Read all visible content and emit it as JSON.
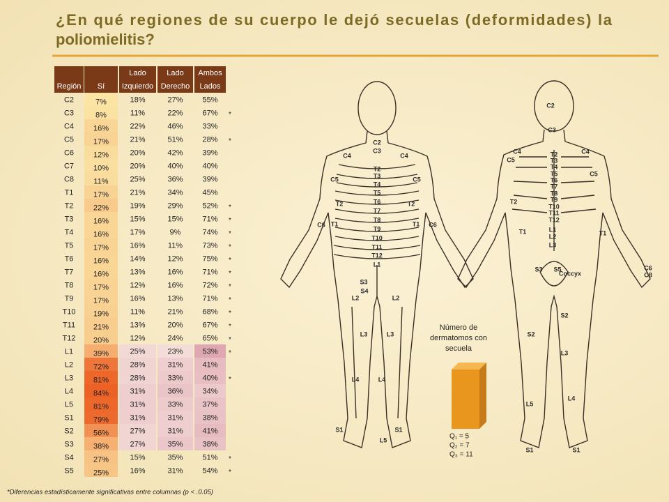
{
  "title": "¿En qué regiones de su cuerpo le dejó secuelas (deformidades) la poliomielitis?",
  "table": {
    "headers": [
      "Región",
      "Sí",
      "Lado Izquierdo",
      "Lado Derecho",
      "Ambos Lados"
    ],
    "rows": [
      {
        "region": "C2",
        "si": "7%",
        "izq": "18%",
        "der": "27%",
        "ambos": "55%"
      },
      {
        "region": "C3",
        "si": "8%",
        "izq": "11%",
        "der": "22%",
        "ambos": "67%",
        "star": "*"
      },
      {
        "region": "C4",
        "si": "16%",
        "izq": "22%",
        "der": "46%",
        "ambos": "33%"
      },
      {
        "region": "C5",
        "si": "17%",
        "izq": "21%",
        "der": "51%",
        "ambos": "28%",
        "star": "*"
      },
      {
        "region": "C6",
        "si": "12%",
        "izq": "20%",
        "der": "42%",
        "ambos": "39%"
      },
      {
        "region": "C7",
        "si": "10%",
        "izq": "20%",
        "der": "40%",
        "ambos": "40%"
      },
      {
        "region": "C8",
        "si": "11%",
        "izq": "25%",
        "der": "36%",
        "ambos": "39%"
      },
      {
        "region": "T1",
        "si": "17%",
        "izq": "21%",
        "der": "34%",
        "ambos": "45%"
      },
      {
        "region": "T2",
        "si": "22%",
        "izq": "19%",
        "der": "29%",
        "ambos": "52%",
        "star": "*"
      },
      {
        "region": "T3",
        "si": "16%",
        "izq": "15%",
        "der": "15%",
        "ambos": "71%",
        "star": "*"
      },
      {
        "region": "T4",
        "si": "16%",
        "izq": "17%",
        "der": "9%",
        "ambos": "74%",
        "star": "*"
      },
      {
        "region": "T5",
        "si": "17%",
        "izq": "16%",
        "der": "11%",
        "ambos": "73%",
        "star": "*"
      },
      {
        "region": "T6",
        "si": "16%",
        "izq": "14%",
        "der": "12%",
        "ambos": "75%",
        "star": "*"
      },
      {
        "region": "T7",
        "si": "16%",
        "izq": "13%",
        "der": "16%",
        "ambos": "71%",
        "star": "*"
      },
      {
        "region": "T8",
        "si": "17%",
        "izq": "12%",
        "der": "16%",
        "ambos": "72%",
        "star": "*"
      },
      {
        "region": "T9",
        "si": "17%",
        "izq": "16%",
        "der": "13%",
        "ambos": "71%",
        "star": "*"
      },
      {
        "region": "T10",
        "si": "19%",
        "izq": "11%",
        "der": "21%",
        "ambos": "68%",
        "star": "*"
      },
      {
        "region": "T11",
        "si": "21%",
        "izq": "13%",
        "der": "20%",
        "ambos": "67%",
        "star": "*"
      },
      {
        "region": "T12",
        "si": "20%",
        "izq": "12%",
        "der": "24%",
        "ambos": "65%",
        "star": "*"
      },
      {
        "region": "L1",
        "si": "39%",
        "izq": "25%",
        "der": "23%",
        "ambos": "53%",
        "star": "*",
        "shaded": true
      },
      {
        "region": "L2",
        "si": "72%",
        "izq": "28%",
        "der": "31%",
        "ambos": "41%",
        "shaded": true
      },
      {
        "region": "L3",
        "si": "81%",
        "izq": "28%",
        "der": "33%",
        "ambos": "40%",
        "star": "*",
        "shaded": true
      },
      {
        "region": "L4",
        "si": "84%",
        "izq": "31%",
        "der": "36%",
        "ambos": "34%",
        "shaded": true
      },
      {
        "region": "L5",
        "si": "81%",
        "izq": "31%",
        "der": "33%",
        "ambos": "37%",
        "shaded": true
      },
      {
        "region": "S1",
        "si": "79%",
        "izq": "31%",
        "der": "31%",
        "ambos": "38%",
        "shaded": true
      },
      {
        "region": "S2",
        "si": "56%",
        "izq": "27%",
        "der": "31%",
        "ambos": "41%",
        "shaded": true
      },
      {
        "region": "S3",
        "si": "38%",
        "izq": "27%",
        "der": "35%",
        "ambos": "38%",
        "shaded": true
      },
      {
        "region": "S4",
        "si": "27%",
        "izq": "15%",
        "der": "35%",
        "ambos": "51%",
        "star": "*"
      },
      {
        "region": "S5",
        "si": "25%",
        "izq": "16%",
        "der": "31%",
        "ambos": "54%",
        "star": "*"
      }
    ]
  },
  "footnote": "*Diferencias estadísticamente significativas entre columnas (p < .0.05)",
  "figure": {
    "front_labels": [
      "C2",
      "C3",
      "C4",
      "C4",
      "C5",
      "C5",
      "T2",
      "T3",
      "T4",
      "T5",
      "T6",
      "T7",
      "T8",
      "T9",
      "T10",
      "T11",
      "T12",
      "L1",
      "T2",
      "T2",
      "T1",
      "T1",
      "C6",
      "C6",
      "L2",
      "L2",
      "L3",
      "L3",
      "L4",
      "L4",
      "L5",
      "S1",
      "S1",
      "S4",
      "S3"
    ],
    "back_labels": [
      "C2",
      "C3",
      "C4",
      "C4",
      "C5",
      "C5",
      "T2",
      "T3",
      "T4",
      "T5",
      "T6",
      "T7",
      "T8",
      "T9",
      "T10",
      "T11",
      "T12",
      "L1",
      "L2",
      "L3",
      "T2",
      "T1",
      "T1",
      "S3",
      "S5",
      "Coccyx",
      "S2",
      "S2",
      "L3",
      "L5",
      "L4",
      "S1",
      "S1",
      "C6",
      "C8"
    ]
  },
  "box": {
    "label": "Número de dermatomos con secuela",
    "quartiles": [
      "Q₁ = 5",
      "Q₂ = 7",
      "Q₃ = 11"
    ]
  }
}
